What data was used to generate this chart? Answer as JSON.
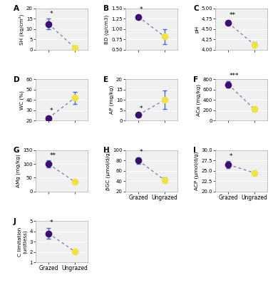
{
  "panels": [
    {
      "label": "A",
      "ylabel": "SH (kg/cm²)",
      "ylim": [
        0,
        20
      ],
      "yticks": [
        0,
        5,
        10,
        15,
        20
      ],
      "grazed_mean": 12.5,
      "grazed_err": 2.5,
      "ungrazed_mean": 1.0,
      "ungrazed_err": 0.5,
      "sig": "*",
      "show_xlabel": false,
      "row": 0,
      "col": 0
    },
    {
      "label": "B",
      "ylabel": "BD (g/cm3)",
      "ylim": [
        0.5,
        1.5
      ],
      "yticks": [
        0.5,
        0.75,
        1.0,
        1.25,
        1.5
      ],
      "grazed_mean": 1.3,
      "grazed_err": 0.05,
      "ungrazed_mean": 0.82,
      "ungrazed_err": 0.18,
      "sig": "*",
      "show_xlabel": false,
      "row": 0,
      "col": 1
    },
    {
      "label": "C",
      "ylabel": "pH",
      "ylim": [
        4.0,
        5.0
      ],
      "yticks": [
        4.0,
        4.25,
        4.5,
        4.75,
        5.0
      ],
      "grazed_mean": 4.65,
      "grazed_err": 0.05,
      "ungrazed_mean": 4.12,
      "ungrazed_err": 0.06,
      "sig": "**",
      "show_xlabel": false,
      "row": 0,
      "col": 2
    },
    {
      "label": "D",
      "ylabel": "WC (%)",
      "ylim": [
        20,
        60
      ],
      "yticks": [
        20,
        30,
        40,
        50,
        60
      ],
      "grazed_mean": 22.5,
      "grazed_err": 2.0,
      "ungrazed_mean": 42.0,
      "ungrazed_err": 6.0,
      "sig": "*",
      "show_xlabel": false,
      "row": 1,
      "col": 0
    },
    {
      "label": "E",
      "ylabel": "AP (mg/kg)",
      "ylim": [
        0,
        20
      ],
      "yticks": [
        0,
        5,
        10,
        15,
        20
      ],
      "grazed_mean": 2.8,
      "grazed_err": 0.5,
      "ungrazed_mean": 10.0,
      "ungrazed_err": 4.5,
      "sig": "*",
      "show_xlabel": false,
      "row": 1,
      "col": 1
    },
    {
      "label": "F",
      "ylabel": "ACa (mg/kg)",
      "ylim": [
        0,
        800
      ],
      "yticks": [
        0,
        200,
        400,
        600,
        800
      ],
      "grazed_mean": 700,
      "grazed_err": 60,
      "ungrazed_mean": 220,
      "ungrazed_err": 40,
      "sig": "***",
      "show_xlabel": false,
      "row": 1,
      "col": 2
    },
    {
      "label": "G",
      "ylabel": "AMg (mg/kg)",
      "ylim": [
        0,
        150
      ],
      "yticks": [
        0,
        50,
        100,
        150
      ],
      "grazed_mean": 100,
      "grazed_err": 12,
      "ungrazed_mean": 35,
      "ungrazed_err": 4,
      "sig": "**",
      "show_xlabel": false,
      "row": 2,
      "col": 0
    },
    {
      "label": "H",
      "ylabel": "βGC (μmol/d/g)",
      "ylim": [
        20,
        100
      ],
      "yticks": [
        20,
        40,
        60,
        80,
        100
      ],
      "grazed_mean": 80,
      "grazed_err": 6,
      "ungrazed_mean": 42,
      "ungrazed_err": 5,
      "sig": "*",
      "show_xlabel": true,
      "row": 2,
      "col": 1
    },
    {
      "label": "I",
      "ylabel": "ACP (μmol/d/g)",
      "ylim": [
        20.0,
        30.0
      ],
      "yticks": [
        20.0,
        22.5,
        25.0,
        27.5,
        30.0
      ],
      "grazed_mean": 26.5,
      "grazed_err": 0.8,
      "ungrazed_mean": 24.5,
      "ungrazed_err": 0.4,
      "sig": "*",
      "show_xlabel": true,
      "row": 2,
      "col": 2
    },
    {
      "label": "J",
      "ylabel": "C limitation\n(unitless)",
      "ylim": [
        1,
        5
      ],
      "yticks": [
        1,
        2,
        3,
        4,
        5
      ],
      "grazed_mean": 3.8,
      "grazed_err": 0.5,
      "ungrazed_mean": 2.05,
      "ungrazed_err": 0.12,
      "sig": "*",
      "show_xlabel": true,
      "row": 3,
      "col": 0
    }
  ],
  "grazed_color": "#3B0F70",
  "ungrazed_color": "#F0E442",
  "line_color": "#6060B0",
  "error_color": "#4169E1",
  "xticklabels": [
    "Grazed",
    "Ungrazed"
  ],
  "marker_size": 7,
  "capsize": 2,
  "background_color": "#f0f0f0",
  "grid_color": "#ffffff"
}
